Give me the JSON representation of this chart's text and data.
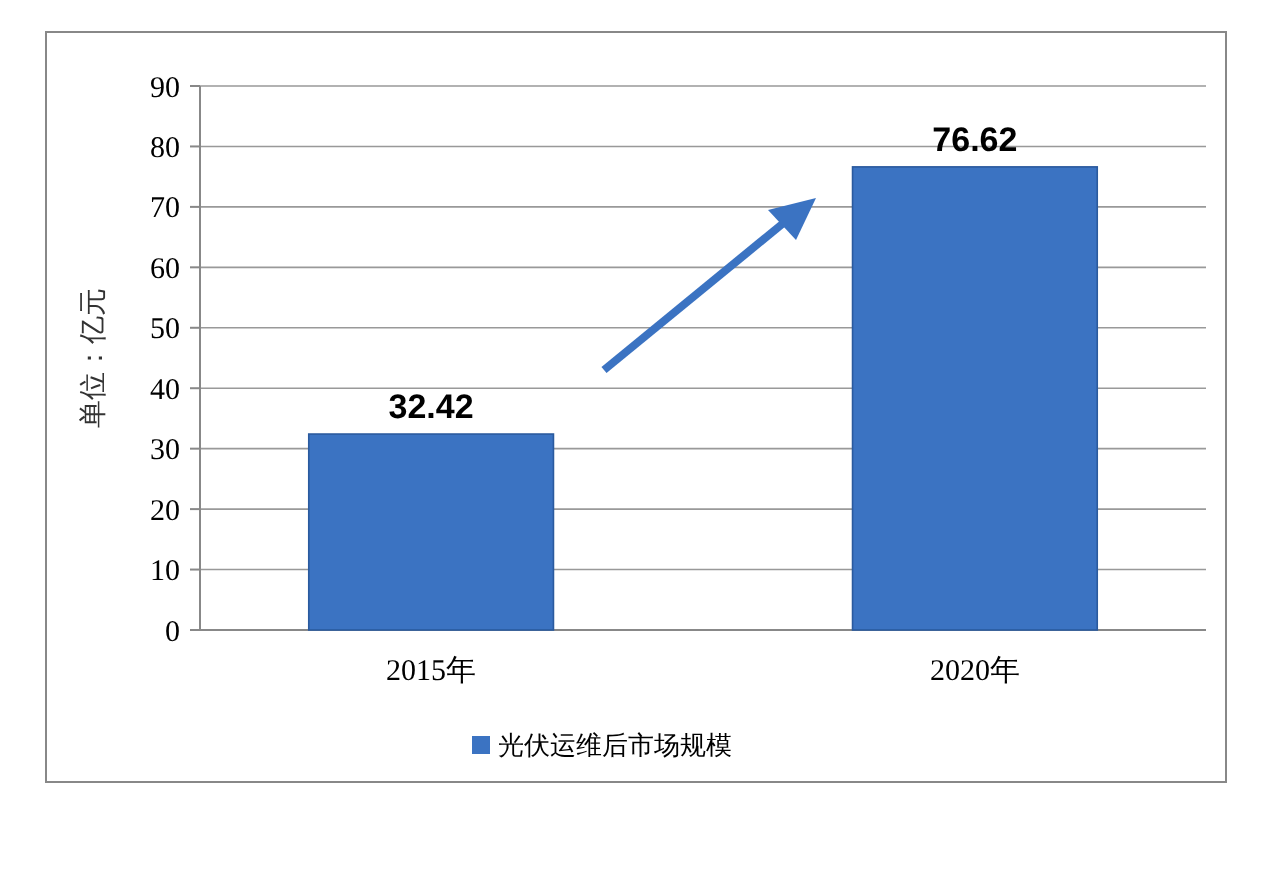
{
  "chart_data": {
    "type": "bar",
    "ylabel": "单位：亿元",
    "categories": [
      "2015年",
      "2020年"
    ],
    "series": [
      {
        "name": "光伏运维后市场规模",
        "color": "#3b73c2",
        "values": [
          32.42,
          76.62
        ]
      }
    ],
    "ylim": [
      0,
      90
    ],
    "yticks": [
      0,
      10,
      20,
      30,
      40,
      50,
      60,
      70,
      80,
      90
    ],
    "grid": "y",
    "legend": "bottom",
    "data_labels": true
  }
}
